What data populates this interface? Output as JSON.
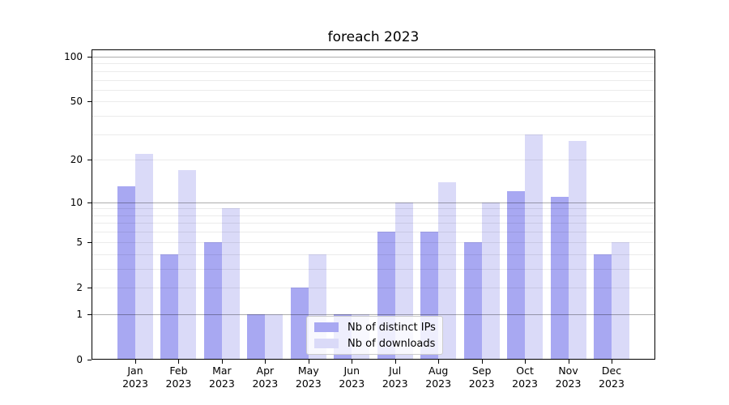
{
  "title": "foreach 2023",
  "chart_data": {
    "type": "bar",
    "title": "foreach 2023",
    "categories": [
      "Jan",
      "Feb",
      "Mar",
      "Apr",
      "May",
      "Jun",
      "Jul",
      "Aug",
      "Sep",
      "Oct",
      "Nov",
      "Dec"
    ],
    "year_label": "2023",
    "series": [
      {
        "name": "Nb of distinct IPs",
        "color": "#a8a8f2",
        "values": [
          13,
          4,
          5,
          1,
          2,
          1,
          6,
          6,
          5,
          12,
          11,
          4
        ]
      },
      {
        "name": "Nb of downloads",
        "color": "#dadaf8",
        "values": [
          22,
          17,
          9,
          1,
          4,
          1,
          10,
          14,
          10,
          30,
          27,
          5
        ]
      }
    ],
    "y_axis": {
      "scale": "log1p",
      "range": [
        0,
        100
      ],
      "tick_values": [
        0,
        1,
        2,
        5,
        10,
        20,
        50,
        100
      ],
      "tick_labels": [
        "0",
        "1",
        "2",
        "5",
        "10",
        "20",
        "50",
        "100"
      ],
      "major_gridlines": [
        1,
        10,
        100
      ],
      "minor_gridlines": [
        2,
        3,
        4,
        5,
        6,
        7,
        8,
        9,
        20,
        30,
        40,
        50,
        60,
        70,
        80,
        90
      ]
    },
    "legend": {
      "position": "lower center"
    },
    "grid": true
  }
}
